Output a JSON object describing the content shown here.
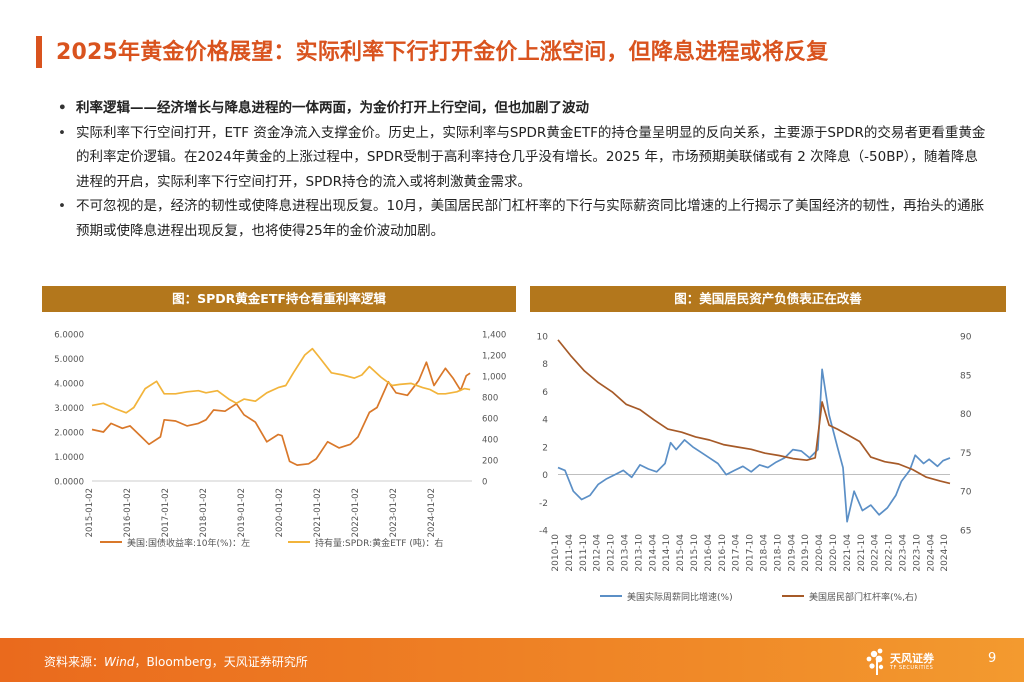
{
  "slide": {
    "title": "2025年黄金价格展望：实际利率下行打开金价上涨空间，但降息进程或将反复",
    "bullets": [
      "利率逻辑——经济增长与降息进程的一体两面，为金价打开上行空间，但也加剧了波动",
      "实际利率下行空间打开，ETF 资金净流入支撑金价。历史上，实际利率与SPDR黄金ETF的持仓量呈明显的反向关系，主要源于SPDR的交易者更看重黄金的利率定价逻辑。在2024年黄金的上涨过程中，SPDR受制于高利率持仓几乎没有增长。2025 年，市场预期美联储或有 2 次降息（-50BP），随着降息进程的开启，实际利率下行空间打开，SPDR持仓的流入或将刺激黄金需求。",
      "不可忽视的是，经济的韧性或使降息进程出现反复。10月，美国居民部门杠杆率的下行与实际薪资同比增速的上行揭示了美国经济的韧性，再抬头的通胀预期或使降息进程出现反复，也将使得25年的金价波动加剧。"
    ],
    "footer": {
      "source_label": "资料来源：",
      "source_italic": "Wind",
      "source_rest": "，Bloomberg，天风证券研究所",
      "logo_text": "天风证券",
      "logo_sub": "TF SECURITIES",
      "page_number": "9"
    },
    "colors": {
      "accent": "#d9531e",
      "panel_header": "#b3771c",
      "footer": "#f08a28"
    }
  },
  "chart_data": [
    {
      "type": "line",
      "title": "图：SPDR黄金ETF持仓看重利率逻辑",
      "x_ticks": [
        "2015-01-02",
        "2016-01-02",
        "2017-01-02",
        "2018-01-02",
        "2019-01-02",
        "2020-01-02",
        "2021-01-02",
        "2022-01-02",
        "2023-01-02",
        "2024-01-02"
      ],
      "x_range": [
        2015.0,
        2025.0
      ],
      "y_left": {
        "ticks": [
          "0.0000",
          "1.0000",
          "2.0000",
          "3.0000",
          "4.0000",
          "5.0000",
          "6.0000"
        ],
        "range": [
          0,
          6
        ]
      },
      "y_right": {
        "ticks": [
          "0",
          "200",
          "400",
          "600",
          "800",
          "1,000",
          "1,200",
          "1,400"
        ],
        "range": [
          0,
          1400
        ]
      },
      "series": [
        {
          "name": "美国:国债收益率:10年(%)：左",
          "axis": "left",
          "color": "#d9782a",
          "points": [
            [
              2015.0,
              2.1
            ],
            [
              2015.3,
              2.0
            ],
            [
              2015.5,
              2.35
            ],
            [
              2015.8,
              2.15
            ],
            [
              2016.0,
              2.25
            ],
            [
              2016.3,
              1.8
            ],
            [
              2016.5,
              1.5
            ],
            [
              2016.8,
              1.8
            ],
            [
              2016.9,
              2.5
            ],
            [
              2017.2,
              2.45
            ],
            [
              2017.5,
              2.25
            ],
            [
              2017.8,
              2.35
            ],
            [
              2018.0,
              2.5
            ],
            [
              2018.2,
              2.9
            ],
            [
              2018.5,
              2.85
            ],
            [
              2018.8,
              3.15
            ],
            [
              2019.0,
              2.7
            ],
            [
              2019.3,
              2.4
            ],
            [
              2019.6,
              1.6
            ],
            [
              2019.9,
              1.9
            ],
            [
              2020.0,
              1.85
            ],
            [
              2020.2,
              0.8
            ],
            [
              2020.4,
              0.65
            ],
            [
              2020.7,
              0.7
            ],
            [
              2020.9,
              0.9
            ],
            [
              2021.2,
              1.6
            ],
            [
              2021.5,
              1.35
            ],
            [
              2021.8,
              1.5
            ],
            [
              2022.0,
              1.8
            ],
            [
              2022.3,
              2.8
            ],
            [
              2022.5,
              3.0
            ],
            [
              2022.8,
              4.05
            ],
            [
              2023.0,
              3.6
            ],
            [
              2023.3,
              3.5
            ],
            [
              2023.6,
              4.1
            ],
            [
              2023.8,
              4.85
            ],
            [
              2024.0,
              3.9
            ],
            [
              2024.3,
              4.6
            ],
            [
              2024.5,
              4.2
            ],
            [
              2024.7,
              3.7
            ],
            [
              2024.85,
              4.3
            ],
            [
              2024.95,
              4.4
            ]
          ]
        },
        {
          "name": "持有量:SPDR:黄金ETF (吨)：右",
          "axis": "right",
          "color": "#f2b43b",
          "points": [
            [
              2015.0,
              720
            ],
            [
              2015.3,
              740
            ],
            [
              2015.6,
              690
            ],
            [
              2015.9,
              650
            ],
            [
              2016.1,
              700
            ],
            [
              2016.4,
              880
            ],
            [
              2016.7,
              950
            ],
            [
              2016.9,
              830
            ],
            [
              2017.2,
              830
            ],
            [
              2017.5,
              850
            ],
            [
              2017.8,
              860
            ],
            [
              2018.0,
              840
            ],
            [
              2018.3,
              860
            ],
            [
              2018.6,
              780
            ],
            [
              2018.8,
              740
            ],
            [
              2019.0,
              780
            ],
            [
              2019.3,
              760
            ],
            [
              2019.6,
              840
            ],
            [
              2019.9,
              890
            ],
            [
              2020.1,
              910
            ],
            [
              2020.3,
              1030
            ],
            [
              2020.6,
              1200
            ],
            [
              2020.8,
              1260
            ],
            [
              2021.0,
              1170
            ],
            [
              2021.3,
              1030
            ],
            [
              2021.6,
              1010
            ],
            [
              2021.9,
              980
            ],
            [
              2022.1,
              1010
            ],
            [
              2022.3,
              1090
            ],
            [
              2022.6,
              990
            ],
            [
              2022.9,
              910
            ],
            [
              2023.1,
              920
            ],
            [
              2023.4,
              930
            ],
            [
              2023.7,
              890
            ],
            [
              2023.9,
              870
            ],
            [
              2024.1,
              830
            ],
            [
              2024.3,
              830
            ],
            [
              2024.6,
              850
            ],
            [
              2024.8,
              880
            ],
            [
              2024.95,
              870
            ]
          ]
        }
      ]
    },
    {
      "type": "line",
      "title": "图：美国居民资产负债表正在改善",
      "x_ticks": [
        "2010-10",
        "2011-04",
        "2011-10",
        "2012-04",
        "2012-10",
        "2013-04",
        "2013-10",
        "2014-04",
        "2014-10",
        "2015-04",
        "2015-10",
        "2016-04",
        "2016-10",
        "2017-04",
        "2017-10",
        "2018-04",
        "2018-10",
        "2019-04",
        "2019-10",
        "2020-04",
        "2020-10",
        "2021-04",
        "2021-10",
        "2022-04",
        "2022-10",
        "2023-04",
        "2023-10",
        "2024-04",
        "2024-10"
      ],
      "x_range": [
        2010.75,
        2024.85
      ],
      "y_left": {
        "ticks": [
          "-4",
          "-2",
          "0",
          "2",
          "4",
          "6",
          "8",
          "10"
        ],
        "range": [
          -4,
          10
        ]
      },
      "y_right": {
        "ticks": [
          "65",
          "70",
          "75",
          "80",
          "85",
          "90"
        ],
        "range": [
          65,
          90
        ]
      },
      "series": [
        {
          "name": "美国实际周薪同比增速(%)",
          "axis": "left",
          "color": "#5b8fc6",
          "points": [
            [
              2010.75,
              0.5
            ],
            [
              2011.0,
              0.3
            ],
            [
              2011.3,
              -1.2
            ],
            [
              2011.6,
              -1.8
            ],
            [
              2011.9,
              -1.5
            ],
            [
              2012.2,
              -0.7
            ],
            [
              2012.5,
              -0.3
            ],
            [
              2012.8,
              0.0
            ],
            [
              2013.1,
              0.3
            ],
            [
              2013.4,
              -0.2
            ],
            [
              2013.7,
              0.7
            ],
            [
              2014.0,
              0.4
            ],
            [
              2014.3,
              0.2
            ],
            [
              2014.6,
              0.8
            ],
            [
              2014.8,
              2.3
            ],
            [
              2015.0,
              1.8
            ],
            [
              2015.3,
              2.5
            ],
            [
              2015.6,
              2.0
            ],
            [
              2015.9,
              1.6
            ],
            [
              2016.2,
              1.2
            ],
            [
              2016.5,
              0.8
            ],
            [
              2016.8,
              0.0
            ],
            [
              2017.1,
              0.3
            ],
            [
              2017.4,
              0.6
            ],
            [
              2017.7,
              0.2
            ],
            [
              2018.0,
              0.7
            ],
            [
              2018.3,
              0.5
            ],
            [
              2018.6,
              0.9
            ],
            [
              2018.9,
              1.2
            ],
            [
              2019.2,
              1.8
            ],
            [
              2019.5,
              1.7
            ],
            [
              2019.8,
              1.2
            ],
            [
              2020.1,
              1.8
            ],
            [
              2020.25,
              7.6
            ],
            [
              2020.5,
              4.3
            ],
            [
              2020.8,
              2.0
            ],
            [
              2021.0,
              0.5
            ],
            [
              2021.15,
              -3.4
            ],
            [
              2021.4,
              -1.2
            ],
            [
              2021.7,
              -2.6
            ],
            [
              2022.0,
              -2.2
            ],
            [
              2022.3,
              -2.9
            ],
            [
              2022.6,
              -2.4
            ],
            [
              2022.9,
              -1.5
            ],
            [
              2023.1,
              -0.5
            ],
            [
              2023.4,
              0.3
            ],
            [
              2023.6,
              1.4
            ],
            [
              2023.9,
              0.8
            ],
            [
              2024.1,
              1.1
            ],
            [
              2024.4,
              0.6
            ],
            [
              2024.6,
              1.0
            ],
            [
              2024.85,
              1.2
            ]
          ]
        },
        {
          "name": "美国居民部门杠杆率(%,右)",
          "axis": "right",
          "color": "#a65a28",
          "points": [
            [
              2010.75,
              89.5
            ],
            [
              2011.2,
              87.5
            ],
            [
              2011.7,
              85.5
            ],
            [
              2012.2,
              84.0
            ],
            [
              2012.7,
              82.8
            ],
            [
              2013.2,
              81.2
            ],
            [
              2013.7,
              80.5
            ],
            [
              2014.2,
              79.2
            ],
            [
              2014.7,
              78.0
            ],
            [
              2015.2,
              77.6
            ],
            [
              2015.7,
              77.0
            ],
            [
              2016.2,
              76.6
            ],
            [
              2016.7,
              76.0
            ],
            [
              2017.2,
              75.7
            ],
            [
              2017.7,
              75.4
            ],
            [
              2018.2,
              74.9
            ],
            [
              2018.7,
              74.6
            ],
            [
              2019.2,
              74.2
            ],
            [
              2019.7,
              74.0
            ],
            [
              2020.0,
              74.3
            ],
            [
              2020.25,
              81.5
            ],
            [
              2020.5,
              78.5
            ],
            [
              2020.8,
              78.0
            ],
            [
              2021.2,
              77.2
            ],
            [
              2021.6,
              76.4
            ],
            [
              2022.0,
              74.4
            ],
            [
              2022.5,
              73.8
            ],
            [
              2023.0,
              73.5
            ],
            [
              2023.5,
              72.8
            ],
            [
              2024.0,
              71.8
            ],
            [
              2024.5,
              71.3
            ],
            [
              2024.85,
              71.0
            ]
          ]
        }
      ]
    }
  ]
}
